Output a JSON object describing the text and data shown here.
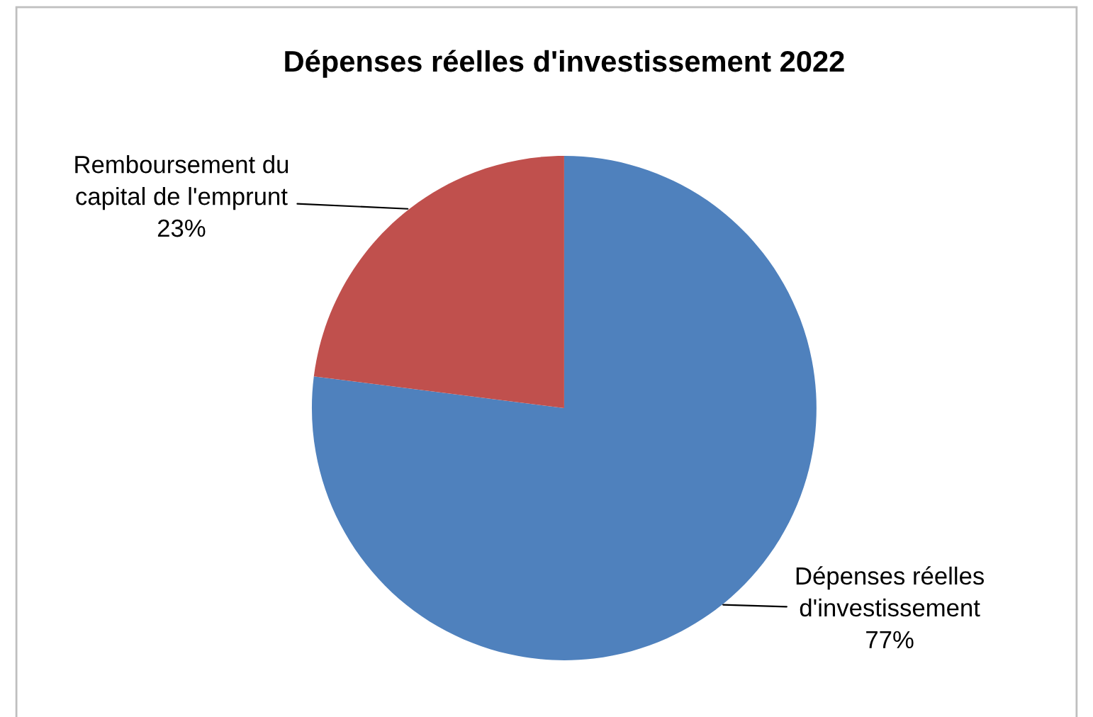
{
  "chart_data": {
    "type": "pie",
    "title": "Dépenses réelles d'investissement 2022",
    "categories": [
      "Dépenses réelles\nd'investissement",
      "Remboursement du\ncapital de l'emprunt"
    ],
    "values": [
      77,
      23
    ],
    "colors": [
      "#4f81bd",
      "#c0504d"
    ],
    "value_labels": [
      "77%",
      "23%"
    ],
    "legend": false
  }
}
